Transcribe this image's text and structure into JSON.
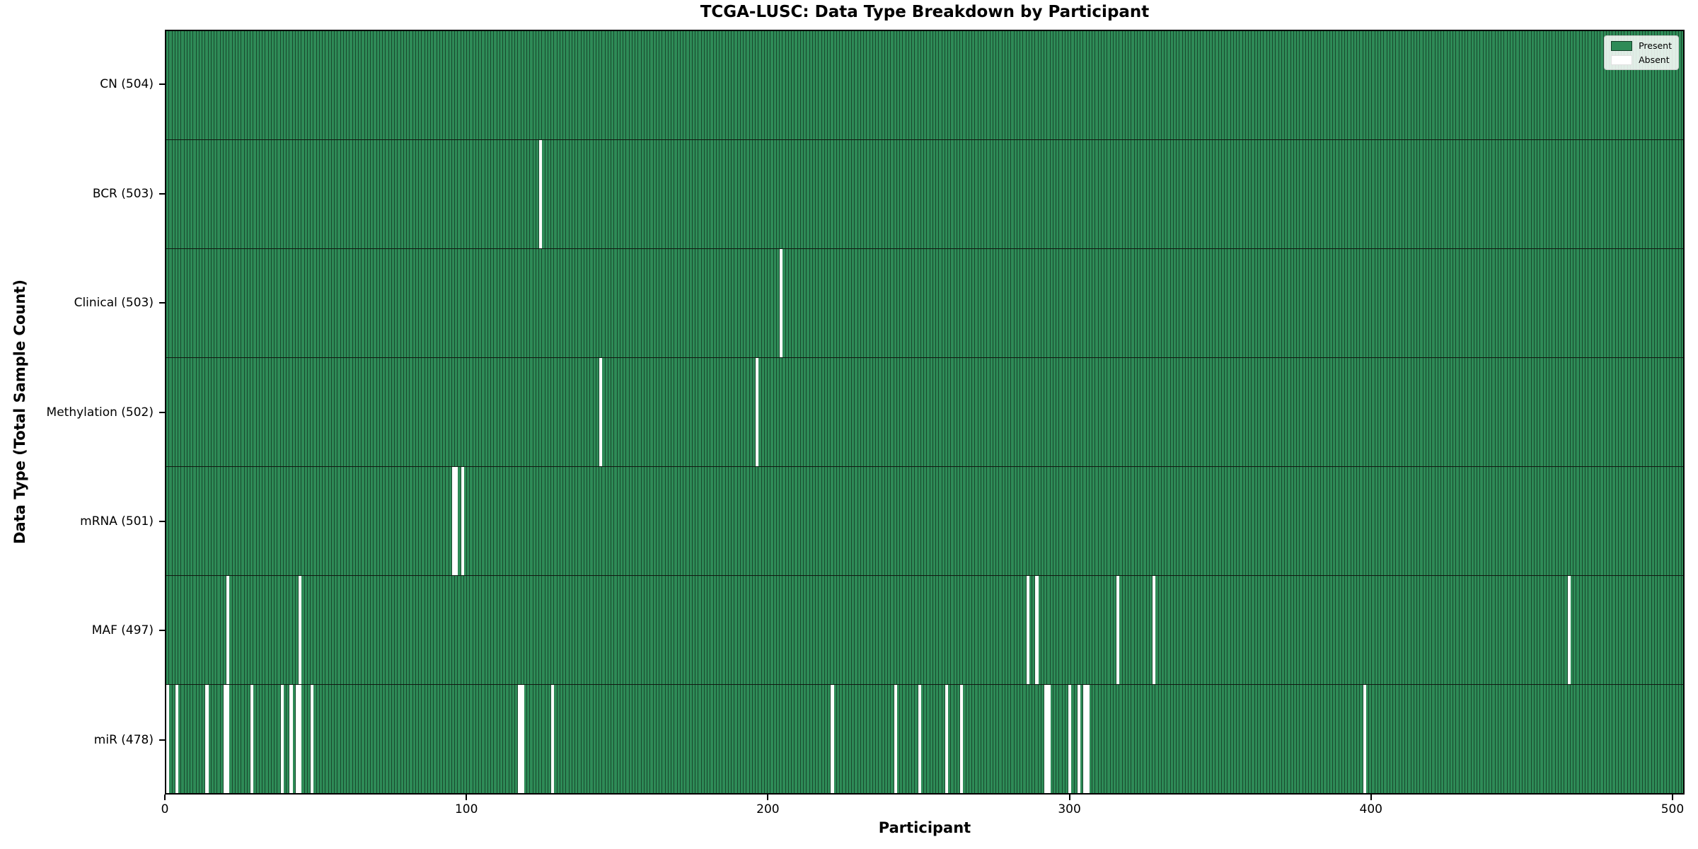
{
  "title": "TCGA-LUSC: Data Type Breakdown by Participant",
  "xlabel": "Participant",
  "ylabel": "Data Type (Total Sample Count)",
  "legend": {
    "present_label": "Present",
    "absent_label": "Absent"
  },
  "colors": {
    "present": "#2E8B57",
    "absent": "#FFFFFF",
    "edge": "rgba(0,0,0,0.48)",
    "spine": "#000000"
  },
  "chart_data": {
    "type": "heatmap",
    "title": "TCGA-LUSC: Data Type Breakdown by Participant",
    "xlabel": "Participant",
    "ylabel": "Data Type (Total Sample Count)",
    "legend": [
      "Present",
      "Absent"
    ],
    "legend_position": "upper right",
    "grid": false,
    "n_participants": 504,
    "x_range": [
      0,
      504
    ],
    "x_ticks": [
      0,
      100,
      200,
      300,
      400,
      500
    ],
    "rows": [
      {
        "data_type": "CN",
        "label": "CN (504)",
        "present_count": 504,
        "absent_participants": []
      },
      {
        "data_type": "BCR",
        "label": "BCR (503)",
        "present_count": 503,
        "absent_participants": [
          124
        ]
      },
      {
        "data_type": "Clinical",
        "label": "Clinical (503)",
        "present_count": 503,
        "absent_participants": [
          204
        ]
      },
      {
        "data_type": "Methylation",
        "label": "Methylation (502)",
        "present_count": 502,
        "absent_participants": [
          144,
          196
        ]
      },
      {
        "data_type": "mRNA",
        "label": "mRNA (501)",
        "present_count": 501,
        "absent_participants": [
          95,
          96,
          98
        ]
      },
      {
        "data_type": "MAF",
        "label": "MAF (497)",
        "present_count": 497,
        "absent_participants": [
          20,
          44,
          286,
          289,
          316,
          328,
          466
        ]
      },
      {
        "data_type": "miR",
        "label": "miR (478)",
        "present_count": 478,
        "absent_participants": [
          0,
          3,
          13,
          19,
          20,
          28,
          38,
          41,
          43,
          44,
          48,
          117,
          118,
          128,
          221,
          242,
          250,
          259,
          264,
          292,
          293,
          300,
          303,
          305,
          306,
          398
        ]
      }
    ]
  }
}
